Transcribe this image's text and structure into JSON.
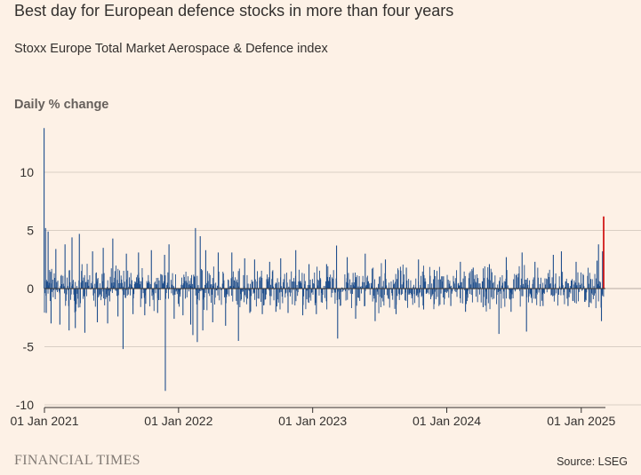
{
  "header": {
    "title": "Best day for European defence stocks in more than four years",
    "subtitle": "Stoxx Europe Total Market Aerospace & Defence index",
    "ylabel": "Daily % change"
  },
  "footer": {
    "brand": "FINANCIAL TIMES",
    "source": "Source: LSEG"
  },
  "chart_data": {
    "type": "bar",
    "title": "Best day for European defence stocks in more than four years",
    "subtitle": "Stoxx Europe Total Market Aerospace & Defence index",
    "ylabel": "Daily % change",
    "xlabel": "",
    "ylim": [
      -10,
      14
    ],
    "yticks": [
      10,
      5,
      0,
      -5,
      -10
    ],
    "xticks": [
      "01 Jan 2021",
      "01 Jan 2022",
      "01 Jan 2023",
      "01 Jan 2024",
      "01 Jan 2025"
    ],
    "x_range": [
      "2021-01-01",
      "2025-03-03"
    ],
    "grid": true,
    "colors": {
      "series": "#1f4e8c",
      "highlight": "#cc0000",
      "grid": "#d9cec4",
      "zero": "#33302e"
    },
    "highlight": {
      "x": "2025-03-03",
      "y": 6.2
    },
    "series": [
      {
        "values": [
          [
            "2020-12-31",
            13.8
          ],
          [
            "2021-01-04",
            5.2
          ],
          [
            "2021-01-06",
            -2.1
          ],
          [
            "2021-01-11",
            4.9
          ],
          [
            "2021-01-19",
            -3.0
          ],
          [
            "2021-02-01",
            3.4
          ],
          [
            "2021-02-12",
            -3.1
          ],
          [
            "2021-02-26",
            3.8
          ],
          [
            "2021-03-09",
            -3.6
          ],
          [
            "2021-03-17",
            4.4
          ],
          [
            "2021-03-26",
            -3.4
          ],
          [
            "2021-04-06",
            4.7
          ],
          [
            "2021-04-21",
            -3.8
          ],
          [
            "2021-05-12",
            3.2
          ],
          [
            "2021-05-25",
            -2.9
          ],
          [
            "2021-06-10",
            3.5
          ],
          [
            "2021-06-22",
            -3.0
          ],
          [
            "2021-07-06",
            4.3
          ],
          [
            "2021-07-20",
            -2.4
          ],
          [
            "2021-08-03",
            -5.2
          ],
          [
            "2021-08-12",
            3.0
          ],
          [
            "2021-08-30",
            -2.2
          ],
          [
            "2021-09-14",
            3.1
          ],
          [
            "2021-10-01",
            -2.3
          ],
          [
            "2021-10-19",
            3.3
          ],
          [
            "2021-11-05",
            -2.1
          ],
          [
            "2021-11-24",
            2.9
          ],
          [
            "2021-11-26",
            -8.8
          ],
          [
            "2021-12-06",
            3.8
          ],
          [
            "2021-12-20",
            -2.6
          ],
          [
            "2022-01-13",
            -2.3
          ],
          [
            "2022-02-03",
            -3.1
          ],
          [
            "2022-02-09",
            -4.0
          ],
          [
            "2022-02-16",
            5.2
          ],
          [
            "2022-02-21",
            -4.6
          ],
          [
            "2022-03-01",
            4.5
          ],
          [
            "2022-03-08",
            -3.6
          ],
          [
            "2022-03-16",
            3.3
          ],
          [
            "2022-04-04",
            -2.9
          ],
          [
            "2022-04-19",
            3.1
          ],
          [
            "2022-05-09",
            -3.2
          ],
          [
            "2022-05-26",
            3.1
          ],
          [
            "2022-06-13",
            -4.5
          ],
          [
            "2022-06-30",
            2.6
          ],
          [
            "2022-07-14",
            -2.1
          ],
          [
            "2022-07-27",
            2.5
          ],
          [
            "2022-08-17",
            -2.2
          ],
          [
            "2022-09-06",
            2.3
          ],
          [
            "2022-09-23",
            -2.0
          ],
          [
            "2022-10-06",
            2.6
          ],
          [
            "2022-10-26",
            -2.1
          ],
          [
            "2022-11-16",
            3.3
          ],
          [
            "2022-12-05",
            -2.3
          ],
          [
            "2022-12-22",
            2.1
          ],
          [
            "2023-01-11",
            -2.2
          ],
          [
            "2023-02-08",
            2.1
          ],
          [
            "2023-03-07",
            3.7
          ],
          [
            "2023-03-10",
            -4.3
          ],
          [
            "2023-04-05",
            2.7
          ],
          [
            "2023-04-28",
            -2.6
          ],
          [
            "2023-05-24",
            3.0
          ],
          [
            "2023-06-20",
            -2.8
          ],
          [
            "2023-07-18",
            2.5
          ],
          [
            "2023-08-16",
            -2.2
          ],
          [
            "2023-09-13",
            1.8
          ],
          [
            "2023-10-16",
            2.5
          ],
          [
            "2023-10-30",
            -1.8
          ],
          [
            "2023-11-28",
            1.6
          ],
          [
            "2024-01-12",
            -1.5
          ],
          [
            "2024-02-07",
            2.3
          ],
          [
            "2024-02-21",
            -2.0
          ],
          [
            "2024-03-13",
            1.8
          ],
          [
            "2024-04-09",
            -1.6
          ],
          [
            "2024-04-26",
            2.1
          ],
          [
            "2024-05-22",
            -3.9
          ],
          [
            "2024-06-11",
            2.7
          ],
          [
            "2024-06-24",
            -2.0
          ],
          [
            "2024-07-24",
            3.1
          ],
          [
            "2024-08-05",
            -3.7
          ],
          [
            "2024-08-28",
            2.3
          ],
          [
            "2024-09-19",
            -1.5
          ],
          [
            "2024-10-17",
            2.9
          ],
          [
            "2024-11-08",
            3.2
          ],
          [
            "2024-11-26",
            -1.5
          ],
          [
            "2024-12-18",
            2.3
          ],
          [
            "2025-01-22",
            -1.6
          ],
          [
            "2025-02-13",
            2.4
          ],
          [
            "2025-02-17",
            3.8
          ],
          [
            "2025-02-25",
            -2.8
          ],
          [
            "2025-02-28",
            3.2
          ],
          [
            "2025-03-03",
            6.2
          ]
        ]
      }
    ]
  }
}
